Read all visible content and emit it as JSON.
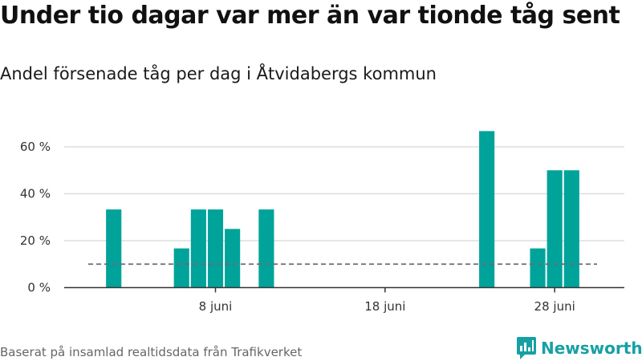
{
  "title": "Under tio dagar var mer än var tionde tåg sent",
  "subtitle": "Andel försenade tåg per dag i Åtvidabergs kommun",
  "footer": "Baserat på insamlad realtidsdata från Trafikverket",
  "brand": {
    "name": "Newsworthy",
    "icon": "newsworthy-logo-icon",
    "color": "#17a0a3"
  },
  "colors": {
    "bar": "#00a39a",
    "reference_line": "#6b6b76",
    "grid": "#dddddd",
    "axis": "#333333"
  },
  "chart_data": {
    "type": "bar",
    "x_start": "2020-06-01",
    "x_end": "2020-06-30",
    "x": [
      "2020-06-02",
      "2020-06-06",
      "2020-06-07",
      "2020-06-08",
      "2020-06-09",
      "2020-06-11",
      "2020-06-24",
      "2020-06-27",
      "2020-06-28",
      "2020-06-29"
    ],
    "values": [
      33.3,
      16.7,
      33.3,
      33.3,
      25,
      33.3,
      66.7,
      16.7,
      50,
      50
    ],
    "unit": "%",
    "ylim": [
      0,
      70
    ],
    "yticks": [
      0,
      20,
      40,
      60
    ],
    "ytick_labels": [
      "0 %",
      "20 %",
      "40 %",
      "60 %"
    ],
    "xticks": [
      "2020-06-08",
      "2020-06-18",
      "2020-06-28"
    ],
    "xtick_labels": [
      "8 juni",
      "18 juni",
      "28 juni"
    ],
    "reference_line": {
      "value": 10,
      "style": "dashed"
    },
    "grid": true,
    "xlabel": "",
    "ylabel": ""
  }
}
